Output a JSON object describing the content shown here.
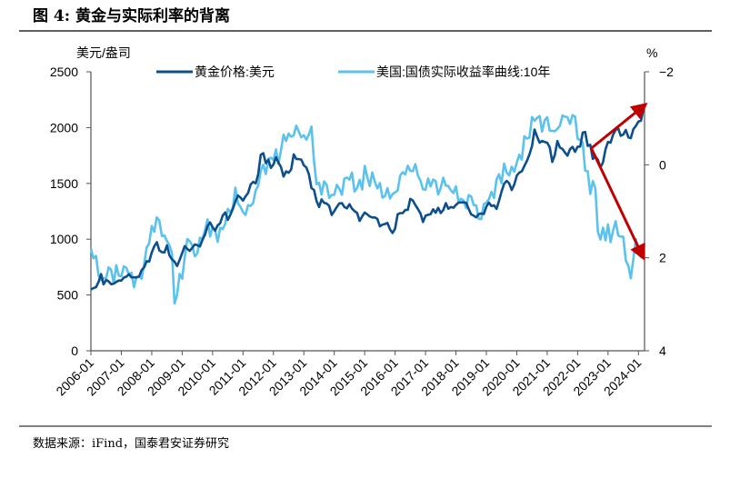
{
  "title": "图 4:  黄金与实际利率的背离",
  "source": "数据来源：iFind，国泰君安证券研究",
  "colors": {
    "gold": "#0D4E8C",
    "real_yield": "#5BC2EC",
    "arrow": "#C00000"
  },
  "chart_data": {
    "type": "line",
    "title": "黄金与实际利率的背离",
    "ylabel": "美元/盎司",
    "y2label": "%",
    "ylim": [
      0,
      2500
    ],
    "y2lim": [
      -2,
      4
    ],
    "y2_inverted": true,
    "yticks": [
      "0",
      "500",
      "1000",
      "1500",
      "2000",
      "2500"
    ],
    "y2ticks": [
      "-2",
      "0",
      "2",
      "4"
    ],
    "xticks": [
      "2006-01",
      "2007-01",
      "2008-01",
      "2009-01",
      "2010-01",
      "2011-01",
      "2012-01",
      "2013-01",
      "2014-01",
      "2015-01",
      "2016-01",
      "2017-01",
      "2018-01",
      "2019-01",
      "2020-01",
      "2021-01",
      "2022-01",
      "2023-01",
      "2024-01"
    ],
    "x_start": "2006-01",
    "x_step": "month",
    "legend_position": "top",
    "series": [
      {
        "name": "黄金价格:美元",
        "axis": "left",
        "values": [
          550,
          560,
          580,
          610,
          680,
          600,
          630,
          630,
          600,
          590,
          620,
          630,
          630,
          665,
          655,
          680,
          665,
          655,
          665,
          665,
          710,
          755,
          805,
          800,
          890,
          920,
          970,
          910,
          880,
          890,
          940,
          840,
          830,
          800,
          760,
          820,
          860,
          940,
          925,
          890,
          930,
          945,
          935,
          950,
          995,
          1040,
          1120,
          1130,
          1115,
          1090,
          1115,
          1150,
          1200,
          1230,
          1195,
          1215,
          1270,
          1340,
          1370,
          1390,
          1360,
          1370,
          1420,
          1475,
          1510,
          1530,
          1570,
          1750,
          1770,
          1660,
          1740,
          1650,
          1650,
          1740,
          1670,
          1650,
          1590,
          1590,
          1590,
          1625,
          1745,
          1750,
          1720,
          1690,
          1670,
          1630,
          1590,
          1480,
          1420,
          1340,
          1290,
          1350,
          1350,
          1315,
          1280,
          1225,
          1245,
          1300,
          1335,
          1300,
          1290,
          1280,
          1310,
          1295,
          1240,
          1220,
          1175,
          1200,
          1250,
          1230,
          1180,
          1200,
          1200,
          1180,
          1130,
          1115,
          1125,
          1160,
          1085,
          1065,
          1095,
          1200,
          1245,
          1240,
          1260,
          1275,
          1340,
          1340,
          1325,
          1265,
          1240,
          1150,
          1190,
          1235,
          1230,
          1265,
          1245,
          1260,
          1235,
          1280,
          1315,
          1280,
          1280,
          1265,
          1330,
          1330,
          1325,
          1335,
          1305,
          1280,
          1240,
          1200,
          1200,
          1215,
          1220,
          1250,
          1290,
          1320,
          1300,
          1285,
          1285,
          1360,
          1410,
          1500,
          1510,
          1495,
          1470,
          1480,
          1560,
          1600,
          1590,
          1680,
          1715,
          1735,
          1840,
          1970,
          1920,
          1900,
          1860,
          1860,
          1870,
          1810,
          1720,
          1760,
          1850,
          1830,
          1800,
          1785,
          1775,
          1780,
          1820,
          1790,
          1820,
          1860,
          1950,
          1930,
          1850,
          1840,
          1730,
          1760,
          1680,
          1640,
          1700,
          1800,
          1900,
          1850,
          1910,
          2000,
          1990,
          1940,
          1950,
          1940,
          1920,
          1920,
          1980,
          2040,
          2030,
          2040,
          2200
        ]
      },
      {
        "name": "美国:国债实际收益率曲线:10年",
        "axis": "right",
        "values": [
          1.8,
          2.0,
          2.1,
          2.3,
          2.4,
          2.5,
          2.4,
          2.3,
          2.3,
          2.4,
          2.2,
          2.4,
          2.4,
          2.3,
          2.1,
          2.3,
          2.4,
          2.6,
          2.5,
          2.4,
          2.3,
          2.2,
          1.8,
          1.7,
          1.4,
          1.3,
          1.1,
          1.3,
          1.5,
          1.6,
          1.6,
          1.6,
          2.0,
          3.0,
          2.8,
          2.4,
          2.3,
          2.0,
          1.7,
          1.6,
          1.8,
          1.9,
          1.8,
          1.7,
          1.6,
          1.4,
          1.2,
          1.4,
          1.4,
          1.5,
          1.6,
          1.4,
          1.3,
          1.2,
          1.1,
          1.0,
          0.9,
          0.5,
          0.7,
          1.0,
          1.1,
          1.0,
          0.9,
          0.8,
          0.8,
          0.7,
          0.4,
          0.1,
          0.0,
          0.1,
          0.0,
          -0.1,
          -0.2,
          -0.3,
          -0.1,
          -0.3,
          -0.5,
          -0.6,
          -0.7,
          -0.6,
          -0.7,
          -0.7,
          -0.7,
          -0.7,
          -0.6,
          -0.6,
          -0.6,
          -0.7,
          -0.2,
          0.4,
          0.4,
          0.6,
          0.5,
          0.4,
          0.6,
          0.7,
          0.6,
          0.5,
          0.6,
          0.5,
          0.3,
          0.3,
          0.3,
          0.3,
          0.5,
          0.4,
          0.4,
          0.5,
          0.1,
          0.3,
          0.3,
          0.2,
          0.4,
          0.5,
          0.5,
          0.6,
          0.6,
          0.6,
          0.7,
          0.7,
          0.6,
          0.4,
          0.3,
          0.2,
          0.2,
          0.1,
          0.0,
          0.1,
          0.1,
          0.2,
          0.4,
          0.5,
          0.4,
          0.4,
          0.5,
          0.3,
          0.4,
          0.5,
          0.5,
          0.4,
          0.4,
          0.5,
          0.5,
          0.5,
          0.6,
          0.8,
          0.7,
          0.8,
          0.8,
          0.7,
          0.8,
          0.8,
          0.9,
          1.1,
          1.1,
          1.0,
          0.8,
          0.7,
          0.6,
          0.6,
          0.4,
          0.3,
          0.3,
          0.0,
          0.1,
          0.2,
          0.2,
          0.1,
          -0.1,
          -0.2,
          -0.2,
          -0.5,
          -0.5,
          -0.7,
          -1.0,
          -1.0,
          -1.0,
          -0.9,
          -0.8,
          -1.0,
          -1.0,
          -0.8,
          -0.6,
          -0.7,
          -0.9,
          -0.8,
          -1.1,
          -1.0,
          -0.9,
          -1.0,
          -1.1,
          -1.0,
          -0.6,
          -0.4,
          -0.5,
          0.0,
          0.2,
          0.6,
          0.4,
          0.6,
          1.3,
          1.6,
          1.4,
          1.6,
          1.4,
          1.6,
          1.3,
          1.3,
          1.5,
          1.6,
          1.6,
          1.9,
          2.2,
          2.5,
          2.0,
          1.7,
          1.8,
          1.9,
          2.0
        ]
      }
    ],
    "annotations": [
      {
        "type": "arrow",
        "from": {
          "x": 2022.45,
          "y_left": 1815
        },
        "to": {
          "x": 2024.2,
          "y_left": 2200
        }
      },
      {
        "type": "arrow",
        "from": {
          "x": 2022.45,
          "y_left": 1815
        },
        "to": {
          "x": 2024.15,
          "y_left": 840
        }
      }
    ]
  }
}
